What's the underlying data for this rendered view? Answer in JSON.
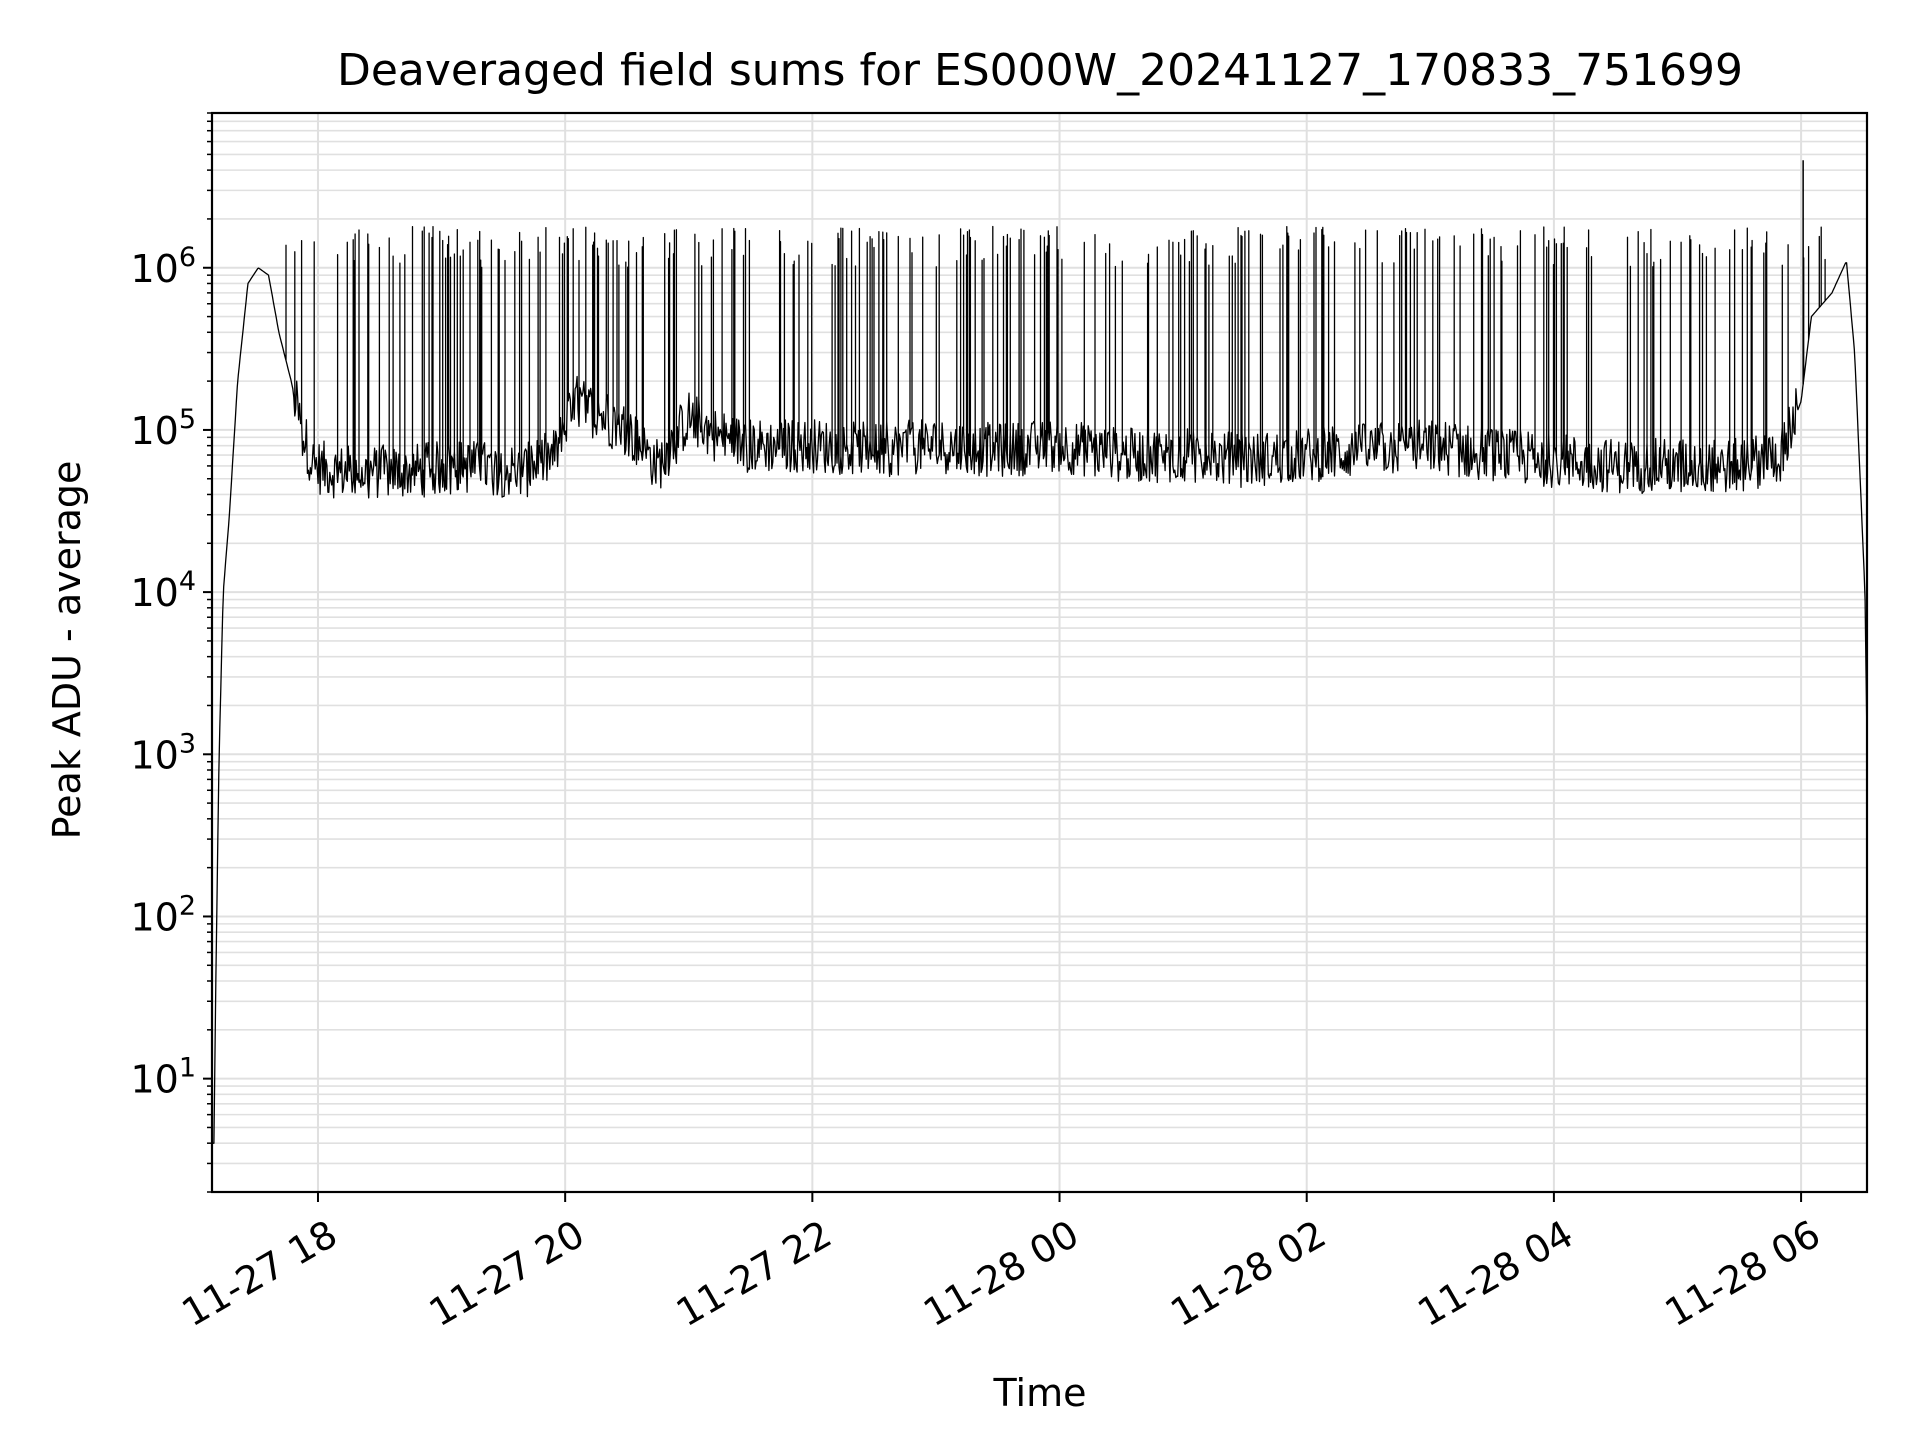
{
  "chart_data": {
    "type": "line",
    "title": "Deaveraged field sums for ES000W_20241127_170833_751699",
    "xlabel": "Time",
    "ylabel": "Peak ADU - average",
    "x_axis": {
      "type": "time",
      "range": [
        "2024-11-27 17:08:33",
        "2024-11-28 06:32:00"
      ],
      "ticks": [
        "2024-11-27 18:00",
        "2024-11-27 20:00",
        "2024-11-27 22:00",
        "2024-11-28 00:00",
        "2024-11-28 02:00",
        "2024-11-28 04:00",
        "2024-11-28 06:00"
      ],
      "tick_labels": [
        "11-27 18",
        "11-27 20",
        "11-27 22",
        "11-28 00",
        "11-28 02",
        "11-28 04",
        "11-28 06"
      ]
    },
    "y_axis": {
      "scale": "log",
      "range": [
        2,
        9000000
      ],
      "tick_values": [
        10,
        100,
        1000,
        10000,
        100000,
        1000000
      ],
      "tick_labels": [
        {
          "base": "10",
          "exp": "1"
        },
        {
          "base": "10",
          "exp": "2"
        },
        {
          "base": "10",
          "exp": "3"
        },
        {
          "base": "10",
          "exp": "4"
        },
        {
          "base": "10",
          "exp": "5"
        },
        {
          "base": "10",
          "exp": "6"
        }
      ]
    },
    "grid": true,
    "legend": "none",
    "line_color": "#000000",
    "grid_color": "#e0e0e0",
    "series": [
      {
        "x": [
          "2024-11-27 17:08:33",
          "2024-11-27 17:09:30",
          "2024-11-27 17:10:30",
          "2024-11-27 17:12:00",
          "2024-11-27 17:14:00",
          "2024-11-27 17:17:00",
          "2024-11-27 17:21:00",
          "2024-11-27 17:26:00",
          "2024-11-27 17:31:00",
          "2024-11-27 17:36:00",
          "2024-11-27 17:41:00",
          "2024-11-27 17:47:00",
          "2024-11-27 17:52:00",
          "2024-11-27 17:58:00",
          "2024-11-27 18:10:00",
          "2024-11-27 18:40:00",
          "2024-11-27 19:10:00",
          "2024-11-27 19:40:00",
          "2024-11-27 19:55:00",
          "2024-11-27 20:05:00",
          "2024-11-27 20:30:00",
          "2024-11-27 20:45:00",
          "2024-11-27 21:00:00",
          "2024-11-27 21:15:00",
          "2024-11-27 21:30:00",
          "2024-11-27 22:00:00",
          "2024-11-27 22:30:00",
          "2024-11-27 23:00:00",
          "2024-11-27 23:30:00",
          "2024-11-28 00:00:00",
          "2024-11-28 00:30:00",
          "2024-11-28 01:00:00",
          "2024-11-28 01:30:00",
          "2024-11-28 02:00:00",
          "2024-11-28 02:30:00",
          "2024-11-28 03:00:00",
          "2024-11-28 03:30:00",
          "2024-11-28 04:00:00",
          "2024-11-28 04:30:00",
          "2024-11-28 05:00:00",
          "2024-11-28 05:30:00",
          "2024-11-28 05:50:00",
          "2024-11-28 06:00:00",
          "2024-11-28 06:05:00",
          "2024-11-28 06:15:00",
          "2024-11-28 06:22:00",
          "2024-11-28 06:26:00",
          "2024-11-28 06:29:00",
          "2024-11-28 06:31:00",
          "2024-11-28 06:32:00"
        ],
        "y": [
          4,
          4,
          50,
          1000,
          10000,
          30000,
          200000,
          800000,
          1000000,
          900000,
          400000,
          200000,
          100000,
          60000,
          55000,
          55000,
          60000,
          55000,
          70000,
          150000,
          100000,
          60000,
          120000,
          90000,
          80000,
          80000,
          75000,
          80000,
          75000,
          80000,
          70000,
          70000,
          65000,
          70000,
          75000,
          80000,
          70000,
          65000,
          60000,
          60000,
          60000,
          70000,
          150000,
          500000,
          700000,
          1100000,
          300000,
          40000,
          10000,
          1200
        ],
        "spikes": {
          "count_approx": 280,
          "peak_range": [
            1000000,
            1800000
          ],
          "max_peak": {
            "x": "2024-11-28 06:01:00",
            "y": 4600000
          }
        }
      }
    ]
  }
}
